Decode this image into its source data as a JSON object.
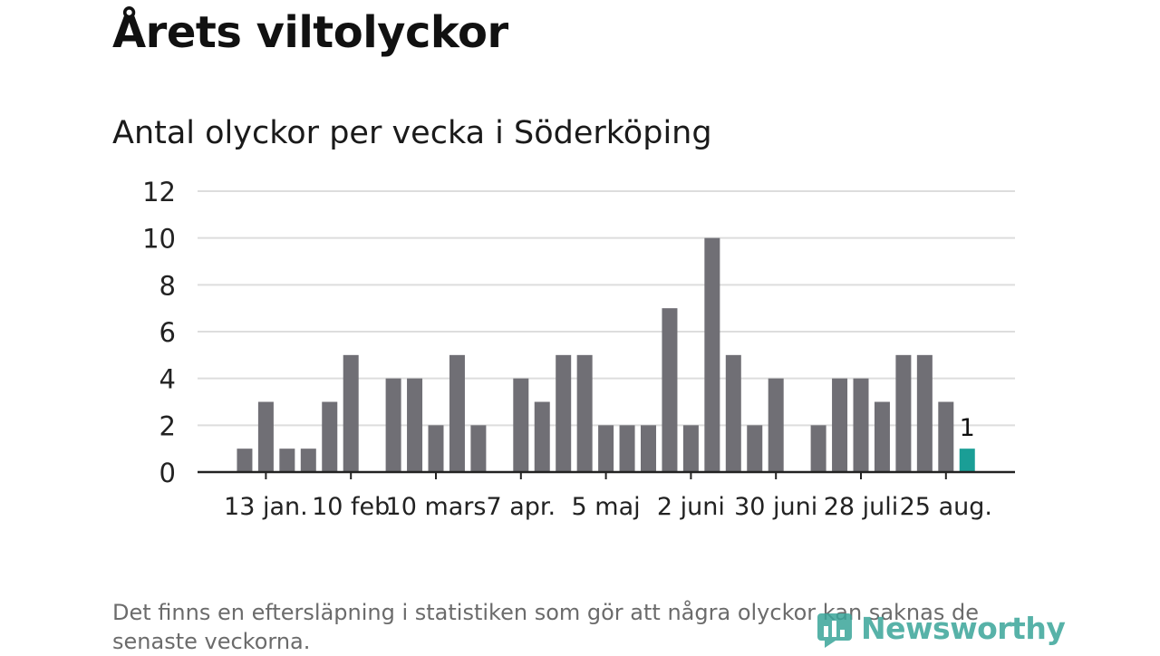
{
  "title": "Årets viltolyckor",
  "subtitle": "Antal olyckor per vecka i Söderköping",
  "footnote": "Det finns en eftersläpning i statistiken som gör att några olyckor kan saknas de senaste veckorna.",
  "brand": "Newsworthy",
  "colors": {
    "bar": "#706f75",
    "highlight": "#1a9e96",
    "grid": "#dddddd",
    "axis": "#222222",
    "brand": "#3aa59a"
  },
  "chart_data": {
    "type": "bar",
    "ylim": [
      0,
      12
    ],
    "yticks": [
      0,
      2,
      4,
      6,
      8,
      10,
      12
    ],
    "grid": true,
    "xtick_labels": [
      "13 jan.",
      "10 feb",
      "10 mars",
      "7 apr.",
      "5 maj",
      "2 juni",
      "30 juni",
      "28 juli",
      "25 aug."
    ],
    "values": [
      0,
      1,
      3,
      1,
      1,
      3,
      5,
      0,
      4,
      4,
      2,
      5,
      2,
      0,
      4,
      3,
      5,
      5,
      2,
      2,
      2,
      7,
      2,
      10,
      5,
      2,
      4,
      0,
      2,
      4,
      4,
      3,
      5,
      5,
      3,
      1
    ],
    "highlight_last": true,
    "last_label": "1"
  }
}
